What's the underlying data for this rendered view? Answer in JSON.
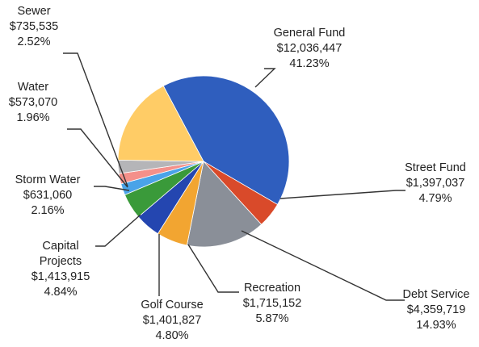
{
  "chart_data": {
    "type": "pie",
    "slices": [
      {
        "label": "General Fund",
        "amount": "$12,036,447",
        "percent": "41.23%",
        "value": 41.23,
        "color": "#2F5EBE"
      },
      {
        "label": "Street Fund",
        "amount": "$1,397,037",
        "percent": "4.79%",
        "value": 4.79,
        "color": "#D94A2A"
      },
      {
        "label": "Debt Service",
        "amount": "$4,359,719",
        "percent": "14.93%",
        "value": 14.93,
        "color": "#8A8F98"
      },
      {
        "label": "Recreation",
        "amount": "$1,715,152",
        "percent": "5.87%",
        "value": 5.87,
        "color": "#F2A531"
      },
      {
        "label": "Golf Course",
        "amount": "$1,401,827",
        "percent": "4.80%",
        "value": 4.8,
        "color": "#2446B0"
      },
      {
        "label": "Capital Projects",
        "amount": "$1,413,915",
        "percent": "4.84%",
        "value": 4.84,
        "color": "#3A9A3A"
      },
      {
        "label": "Storm Water",
        "amount": "$631,060",
        "percent": "2.16%",
        "value": 2.16,
        "color": "#4AA3E8"
      },
      {
        "label": "Water",
        "amount": "$573,070",
        "percent": "1.96%",
        "value": 1.96,
        "color": "#F4908A"
      },
      {
        "label": "Sewer",
        "amount": "$735,535",
        "percent": "2.52%",
        "value": 2.52,
        "color": "#B5B5B8"
      },
      {
        "label": "",
        "amount": "",
        "percent": "",
        "value": 17.0,
        "color": "#FFCC66"
      }
    ]
  },
  "labels": {
    "sewer": {
      "name": "Sewer",
      "amount": "$735,535",
      "percent": "2.52%"
    },
    "water": {
      "name": "Water",
      "amount": "$573,070",
      "percent": "1.96%"
    },
    "storm_water": {
      "name": "Storm Water",
      "amount": "$631,060",
      "percent": "2.16%"
    },
    "capital_projects": {
      "name1": "Capital",
      "name2": "Projects",
      "amount": "$1,413,915",
      "percent": "4.84%"
    },
    "golf_course": {
      "name": "Golf Course",
      "amount": "$1,401,827",
      "percent": "4.80%"
    },
    "recreation": {
      "name": "Recreation",
      "amount": "$1,715,152",
      "percent": "5.87%"
    },
    "debt_service": {
      "name": "Debt Service",
      "amount": "$4,359,719",
      "percent": "14.93%"
    },
    "street_fund": {
      "name": "Street Fund",
      "amount": "$1,397,037",
      "percent": "4.79%"
    },
    "general_fund": {
      "name": "General Fund",
      "amount": "$12,036,447",
      "percent": "41.23%"
    }
  }
}
